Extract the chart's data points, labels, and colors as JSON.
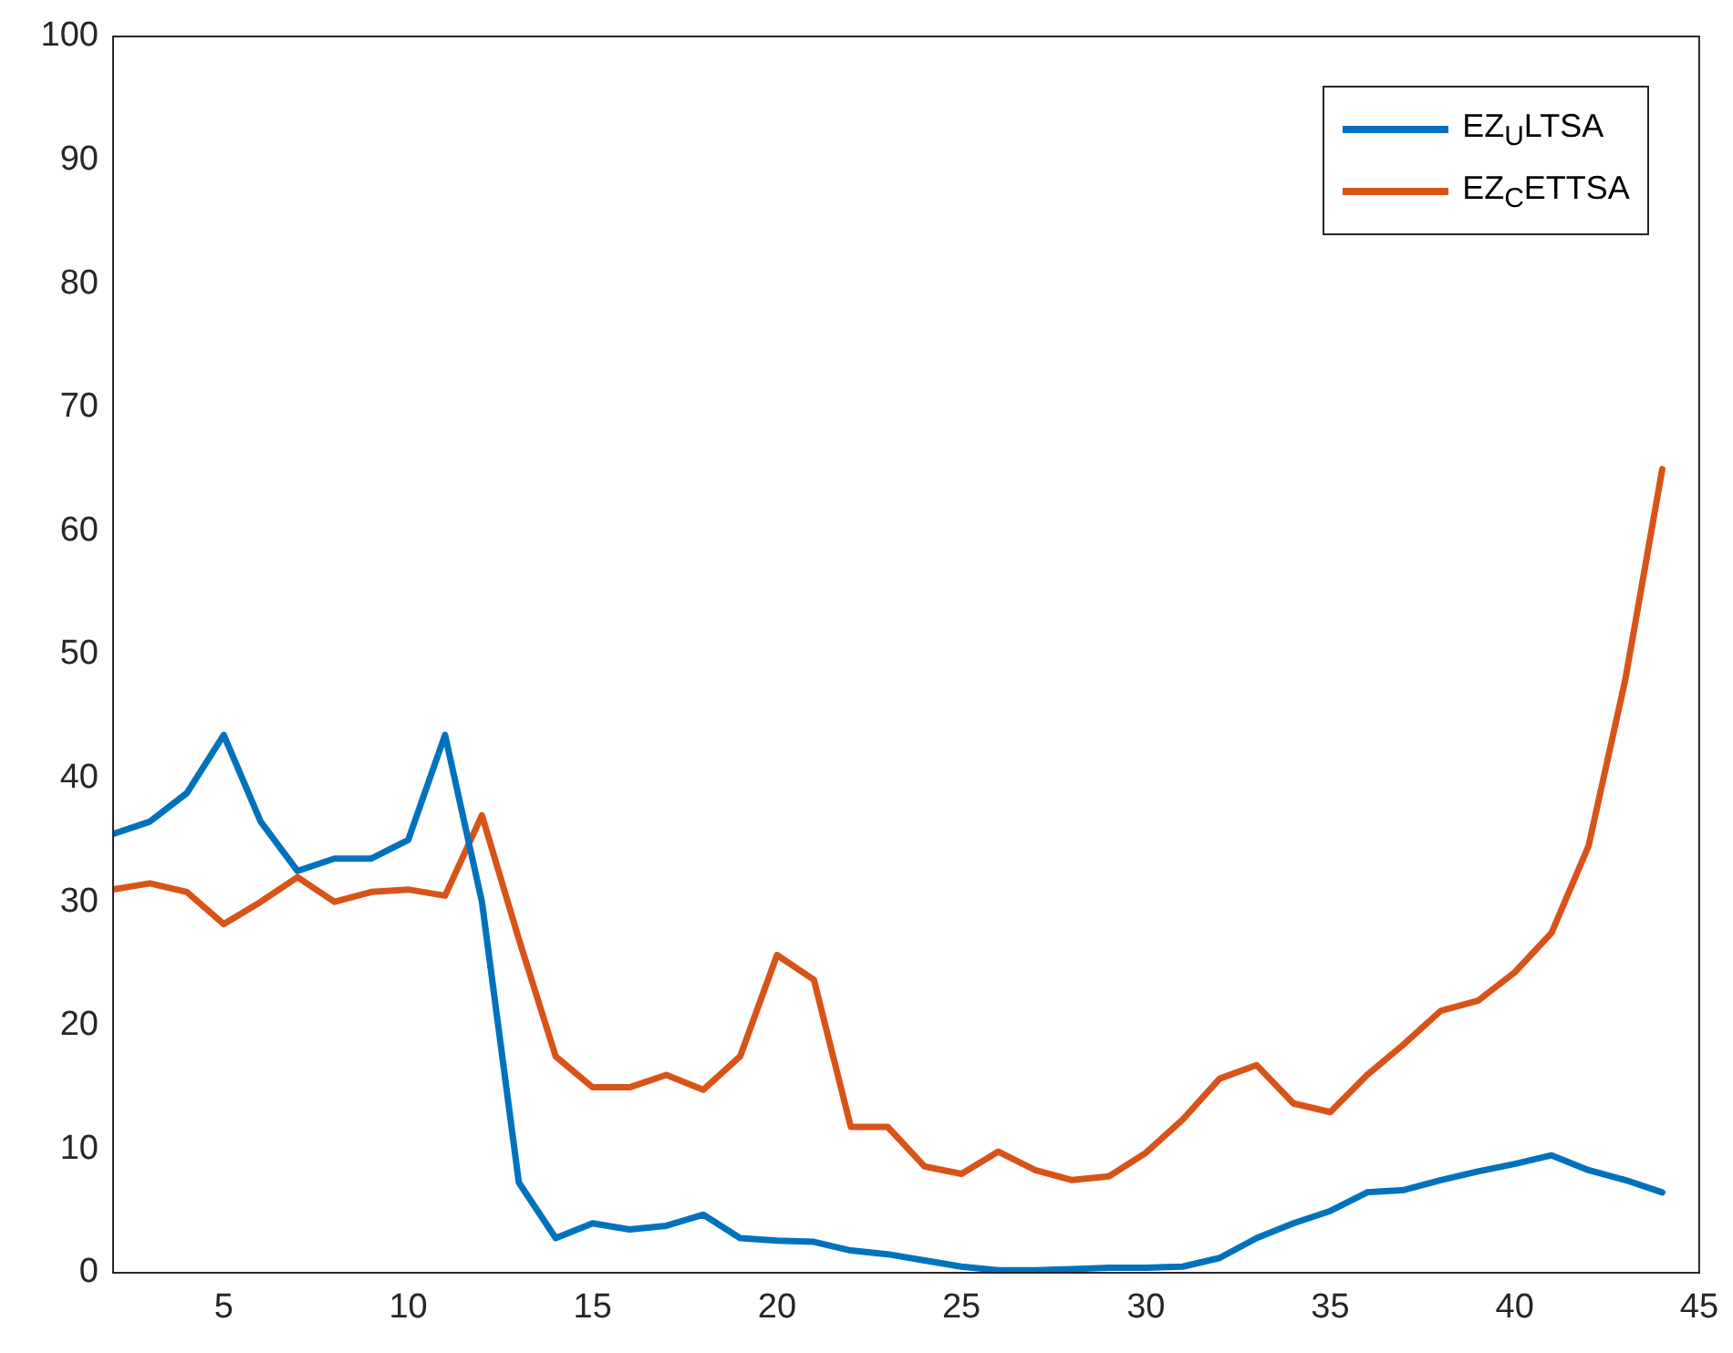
{
  "chart_data": {
    "type": "line",
    "x": [
      2,
      3,
      4,
      5,
      6,
      7,
      8,
      9,
      10,
      11,
      12,
      13,
      14,
      15,
      16,
      17,
      18,
      19,
      20,
      21,
      22,
      23,
      24,
      25,
      26,
      27,
      28,
      29,
      30,
      31,
      32,
      33,
      34,
      35,
      36,
      37,
      38,
      39,
      40,
      41,
      42,
      43,
      44
    ],
    "series": [
      {
        "name": "EZ$_{U}$LTSA",
        "color": "#0072bd",
        "values": [
          35.5,
          36.5,
          38.8,
          43.5,
          36.5,
          32.5,
          33.5,
          33.5,
          35,
          43.5,
          30,
          7.3,
          2.8,
          4,
          3.5,
          3.8,
          4.7,
          2.8,
          2.6,
          2.5,
          1.8,
          1.5,
          1,
          0.5,
          0.2,
          0.2,
          0.3,
          0.4,
          0.4,
          0.5,
          1.2,
          2.8,
          4,
          5,
          6.5,
          6.7,
          7.5,
          8.2,
          8.8,
          9.5,
          8.3,
          7.5,
          6.5
        ]
      },
      {
        "name": "EZ$_{C}$ETTSA",
        "color": "#d95319",
        "values": [
          31,
          31.5,
          30.8,
          28.2,
          30,
          32,
          30,
          30.8,
          31,
          30.5,
          37,
          27,
          17.5,
          15,
          15,
          16,
          14.8,
          17.5,
          25.7,
          23.7,
          11.8,
          11.8,
          8.6,
          8,
          9.8,
          8.3,
          7.5,
          7.8,
          9.7,
          12.4,
          15.7,
          16.8,
          13.7,
          13,
          16,
          18.5,
          21.2,
          22,
          24.3,
          27.5,
          34.5,
          48,
          65
        ]
      }
    ],
    "xlim": [
      2,
      45
    ],
    "xticks": [
      5,
      10,
      15,
      20,
      25,
      30,
      35,
      40,
      45
    ],
    "ylim": [
      0,
      100
    ],
    "yticks": [
      0,
      10,
      20,
      30,
      40,
      50,
      60,
      70,
      80,
      90,
      100
    ],
    "grid": false,
    "legend": "top right",
    "marker": "none",
    "line_style": "solid"
  }
}
